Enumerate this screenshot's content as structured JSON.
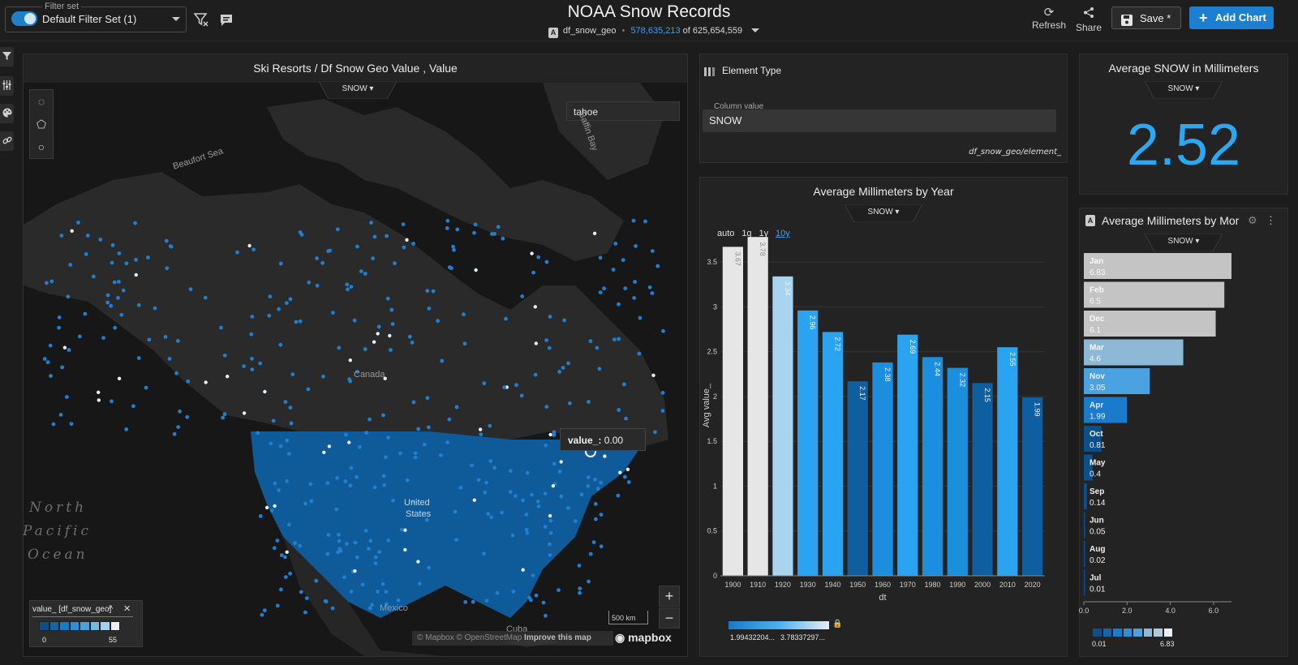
{
  "header": {
    "filter_set_legend": "Filter set",
    "filter_set_name": "Default Filter Set (1)",
    "title": "NOAA Snow Records",
    "datasource_icon": "A",
    "datasource_name": "df_snow_geo",
    "filtered_count": "578,635,213",
    "of_label": "of",
    "total_count": "625,654,559",
    "refresh_label": "Refresh",
    "share_label": "Share",
    "save_label": "Save *",
    "add_chart_label": "Add Chart",
    "icons": [
      "filter-clear-icon",
      "comment-icon",
      "refresh-icon",
      "share-icon",
      "save-icon",
      "plus-icon"
    ]
  },
  "rail": {
    "icons": [
      "filter-icon",
      "sliders-icon",
      "palette-icon",
      "link-icon"
    ]
  },
  "map": {
    "title": "Ski Resorts / Df Snow Geo Value , Value",
    "measure_label": "SNOW",
    "search_value": "tahoe",
    "tooltip_key": "value_:",
    "tooltip_value": "0.00",
    "labels": {
      "beaufort": "Beaufort Sea",
      "baffin": "Baffin Bay",
      "canada": "Canada",
      "us1": "United",
      "us2": "States",
      "mexico": "Mexico",
      "cuba": "Cuba",
      "ocean1": "North",
      "ocean2": "Pacific",
      "ocean3": "Ocean"
    },
    "zoom_in": "+",
    "zoom_out": "−",
    "scale": "500 km",
    "attribution_1": "© Mapbox",
    "attribution_2": "© OpenStreetMap",
    "attribution_3": "Improve this map",
    "logo": "mapbox",
    "legend_title": "value_ [df_snow_geo]",
    "legend_min": "0",
    "legend_max": "55",
    "legend_colors": [
      "#0d4f8a",
      "#1565a6",
      "#1b78c2",
      "#2d8fd6",
      "#4aa3e0",
      "#77badf",
      "#a6d0ea",
      "#e8eef2"
    ]
  },
  "element_type": {
    "title": "Element Type",
    "input_legend": "Column value",
    "value": "SNOW",
    "path": "df_snow_geo/element_"
  },
  "year_chart": {
    "title": "Average Millimeters by Year",
    "measure_label": "SNOW",
    "intervals": [
      "auto",
      "1q",
      "1y",
      "10y"
    ],
    "active_interval": "10y",
    "legend_min": "1.99432204...",
    "legend_max": "3.78337297..."
  },
  "kpi": {
    "title": "Average SNOW in Millimeters",
    "measure_label": "SNOW",
    "value": "2.52"
  },
  "month_chart": {
    "title": "Average Millimeters by Mor",
    "measure_label": "SNOW",
    "legend_min": "0.01",
    "legend_max": "6.83"
  },
  "chart_data": [
    {
      "type": "bar",
      "title": "Average Millimeters by Year",
      "xlabel": "dt",
      "ylabel": "Avg value_",
      "categories": [
        "1900",
        "1910",
        "1920",
        "1930",
        "1940",
        "1950",
        "1960",
        "1970",
        "1980",
        "1990",
        "2000",
        "2010",
        "2020"
      ],
      "values": [
        3.67,
        3.78,
        3.34,
        2.96,
        2.72,
        2.17,
        2.38,
        2.69,
        2.44,
        2.32,
        2.15,
        2.55,
        1.99
      ],
      "data_labels": [
        "3.67",
        "3.78",
        "3.34",
        "2.96",
        "2.72",
        "2.17",
        "2.38",
        "2.69",
        "2.44",
        "2.32",
        "2.15",
        "2.55",
        "1.99"
      ],
      "ylim": [
        0,
        3.8
      ],
      "yticks": [
        "0",
        "0.5",
        "1",
        "1.5",
        "2",
        "2.5",
        "3",
        "3.5"
      ],
      "grid": true,
      "color_scale": [
        "#0e5ea0",
        "#1c8ede",
        "#2aa4f0",
        "#8fc9ea",
        "#e6e6e6"
      ]
    },
    {
      "type": "bar",
      "orientation": "horizontal",
      "title": "Average Millimeters by Mor",
      "categories": [
        "Jan",
        "Feb",
        "Dec",
        "Mar",
        "Nov",
        "Apr",
        "Oct",
        "May",
        "Sep",
        "Jun",
        "Aug",
        "Jul"
      ],
      "values": [
        6.83,
        6.5,
        6.1,
        4.6,
        3.05,
        1.99,
        0.81,
        0.4,
        0.14,
        0.05,
        0.02,
        0.01
      ],
      "data_labels": [
        "6.83",
        "6.5",
        "6.1",
        "4.6",
        "3.05",
        "1.99",
        "0.81",
        "0.4",
        "0.14",
        "0.05",
        "0.02",
        "0.01"
      ],
      "xlim": [
        0,
        6.83
      ],
      "xticks": [
        "0.0",
        "2.0",
        "4.0",
        "6.0"
      ],
      "color_scale": [
        "#0d4f8a",
        "#1a7acb",
        "#4aa3e0",
        "#8db8d6",
        "#c4c4c4"
      ]
    }
  ]
}
